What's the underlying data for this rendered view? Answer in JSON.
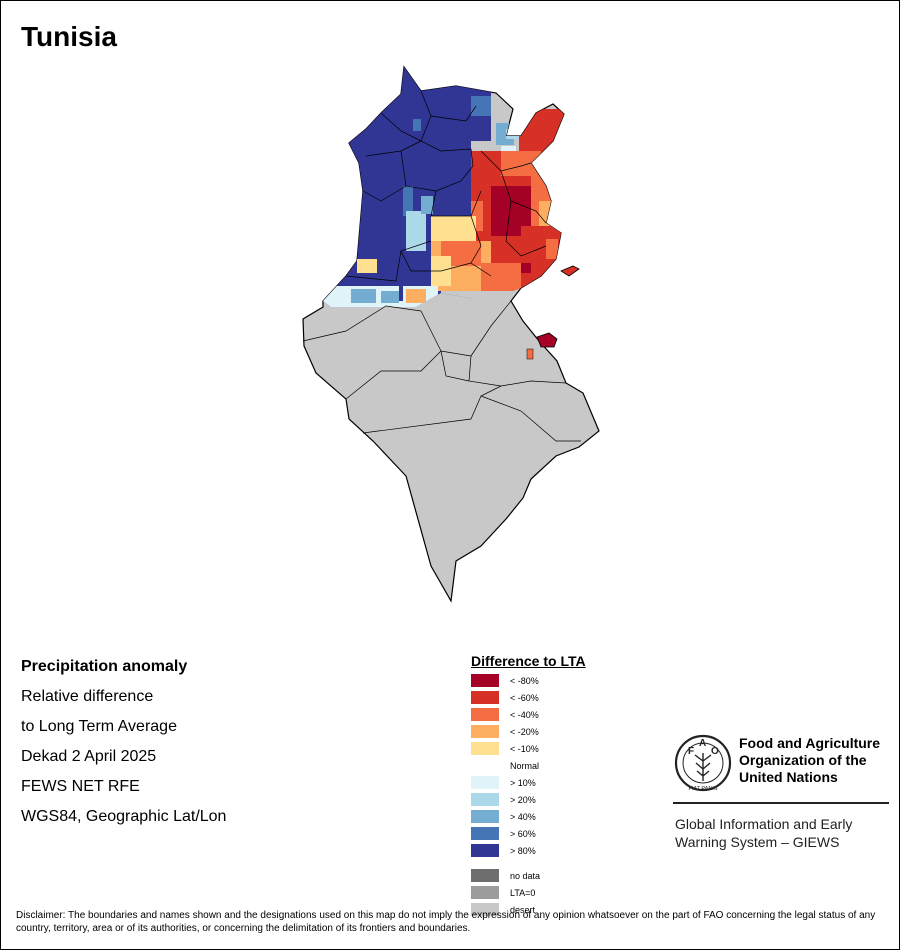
{
  "title": "Tunisia",
  "info": {
    "line1": "Precipitation anomaly",
    "line2": "Relative difference",
    "line3": "to Long Term Average",
    "line4": "Dekad 2 April 2025",
    "line5": "FEWS NET RFE",
    "line6": "WGS84, Geographic Lat/Lon"
  },
  "legend": {
    "title": "Difference to LTA",
    "negative": [
      {
        "label": "< -80%",
        "color": "#a50026"
      },
      {
        "label": "< -60%",
        "color": "#d73027"
      },
      {
        "label": "< -40%",
        "color": "#f46d43"
      },
      {
        "label": "< -20%",
        "color": "#fdae61"
      },
      {
        "label": "< -10%",
        "color": "#fee090"
      }
    ],
    "normal": "Normal",
    "positive": [
      {
        "label": "> 10%",
        "color": "#e0f3f8"
      },
      {
        "label": "> 20%",
        "color": "#abd9e9"
      },
      {
        "label": "> 40%",
        "color": "#74add1"
      },
      {
        "label": "> 60%",
        "color": "#4575b4"
      },
      {
        "label": "> 80%",
        "color": "#313695"
      }
    ],
    "other": [
      {
        "label": "no data",
        "color": "#6e6e6e"
      },
      {
        "label": "LTA=0",
        "color": "#9c9c9c"
      },
      {
        "label": "desert",
        "color": "#c8c8c8"
      }
    ]
  },
  "fao": {
    "name_line1": "Food and Agriculture",
    "name_line2": "Organization of the",
    "name_line3": "United Nations",
    "logo_letters": "FAO",
    "logo_motto": "FIAT PANIS",
    "giews_line1": "Global Information and Early",
    "giews_line2": "Warning System – GIEWS"
  },
  "disclaimer": "Disclaimer: The boundaries and names shown and the designations used on this map do not imply the expression of any opinion whatsoever on the part of FAO concerning the legal status of any country, territory, area or of its authorities, or concerning the delimitation of its frontiers and boundaries."
}
